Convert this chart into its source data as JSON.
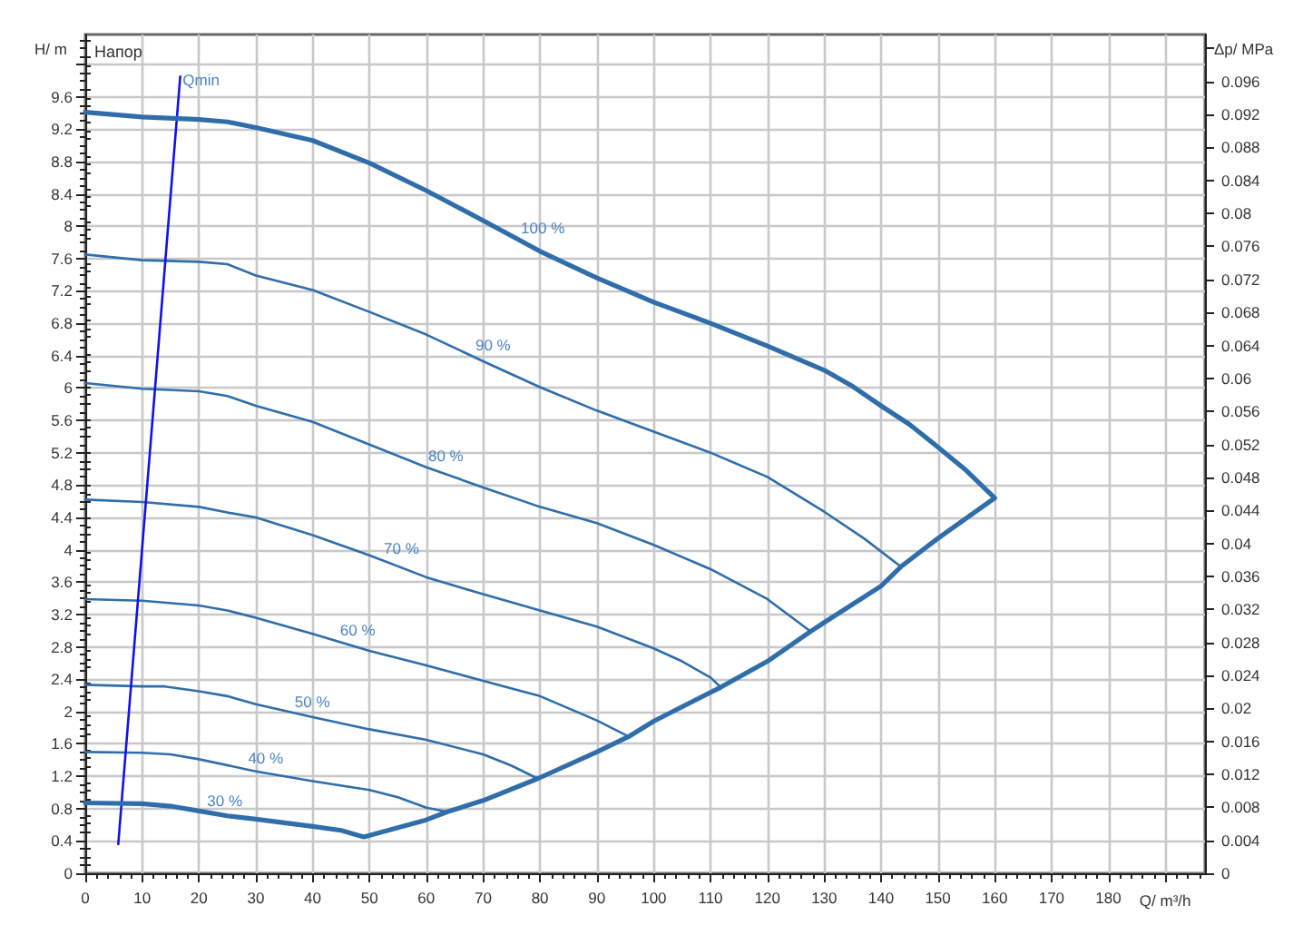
{
  "chart_data": {
    "type": "line",
    "title": "Напор",
    "xlabel": "Q/ m³/h",
    "ylabel": "H/ m",
    "y2label": "Δp/ MPa",
    "xlim": [
      0,
      197
    ],
    "xticks": [
      0,
      10,
      20,
      30,
      40,
      50,
      60,
      70,
      80,
      90,
      100,
      110,
      120,
      130,
      140,
      150,
      160,
      170,
      180,
      {
        "value": 190,
        "label": null
      }
    ],
    "ylim": [
      0,
      10.37
    ],
    "yticks": [
      0,
      0.4,
      0.8,
      1.2,
      1.6,
      2,
      2.4,
      2.8,
      3.2,
      3.6,
      4,
      4.4,
      4.8,
      5.2,
      5.6,
      6,
      6.4,
      6.8,
      7.2,
      7.6,
      8,
      8.4,
      8.8,
      9.2,
      9.6,
      {
        "value": 10,
        "label": null
      }
    ],
    "y2lim": [
      0,
      0.1017
    ],
    "y2ticks": [
      0,
      0.004,
      0.008,
      0.012,
      0.016,
      0.02,
      0.024,
      0.028,
      0.032,
      0.036,
      0.04,
      0.044,
      0.048,
      0.052,
      0.056,
      0.06,
      0.064,
      0.068,
      0.072,
      0.076,
      0.08,
      0.084,
      0.088,
      0.092,
      0.096,
      {
        "value": 0.1,
        "label": null
      }
    ],
    "grid": true,
    "series": [
      {
        "color": "#2f6eaa",
        "x": [
          0,
          10,
          15,
          20,
          25,
          30,
          40,
          45,
          49,
          60,
          63.7,
          70,
          79.6,
          90,
          95.6,
          100,
          111.8,
          120,
          127.6,
          130,
          140,
          143.5,
          150,
          155,
          160,
          155,
          150,
          145,
          140,
          135,
          130,
          120,
          110,
          100,
          90,
          80,
          70,
          60,
          50,
          40,
          30,
          25,
          20,
          10,
          0
        ],
        "values": [
          0.87,
          0.86,
          0.83,
          0.77,
          0.71,
          0.67,
          0.58,
          0.53,
          0.45,
          0.66,
          0.76,
          0.9,
          1.17,
          1.5,
          1.69,
          1.88,
          2.3,
          2.62,
          2.99,
          3.1,
          3.55,
          3.79,
          4.14,
          4.39,
          4.64,
          4.98,
          5.27,
          5.55,
          5.78,
          6.02,
          6.22,
          6.52,
          6.8,
          7.06,
          7.36,
          7.69,
          8.07,
          8.44,
          8.78,
          9.06,
          9.22,
          9.29,
          9.32,
          9.35,
          9.41
        ]
      },
      {
        "color": "#2f6eaa",
        "x": [
          0,
          10,
          20,
          25,
          30,
          40,
          50,
          60,
          70,
          80,
          90,
          100,
          110,
          120,
          130,
          137,
          143.5
        ],
        "values": [
          7.65,
          7.58,
          7.56,
          7.53,
          7.39,
          7.21,
          6.94,
          6.66,
          6.33,
          6.01,
          5.72,
          5.46,
          5.2,
          4.9,
          4.47,
          4.14,
          3.79
        ]
      },
      {
        "color": "#2f6eaa",
        "x": [
          0,
          10,
          20,
          25,
          30,
          40,
          50,
          60,
          70,
          80,
          90,
          100,
          110,
          120,
          127.6
        ],
        "values": [
          6.06,
          5.99,
          5.96,
          5.9,
          5.78,
          5.58,
          5.3,
          5.02,
          4.77,
          4.53,
          4.33,
          4.06,
          3.76,
          3.39,
          2.99
        ]
      },
      {
        "color": "#2f6eaa",
        "x": [
          0,
          10,
          20,
          25,
          30,
          40,
          50,
          60,
          70,
          80,
          90,
          100,
          105,
          110,
          111.8
        ],
        "values": [
          4.62,
          4.59,
          4.53,
          4.46,
          4.4,
          4.18,
          3.93,
          3.66,
          3.45,
          3.25,
          3.05,
          2.78,
          2.62,
          2.42,
          2.3
        ]
      },
      {
        "color": "#2f6eaa",
        "x": [
          0,
          10,
          20,
          25,
          30,
          40,
          50,
          60,
          70,
          80,
          90,
          95.6
        ],
        "values": [
          3.39,
          3.37,
          3.31,
          3.25,
          3.16,
          2.96,
          2.75,
          2.57,
          2.38,
          2.19,
          1.89,
          1.69
        ]
      },
      {
        "color": "#2f6eaa",
        "x": [
          0,
          10,
          14,
          20,
          25,
          30,
          40,
          50,
          60,
          70,
          75,
          79.6
        ],
        "values": [
          2.33,
          2.31,
          2.31,
          2.25,
          2.19,
          2.09,
          1.93,
          1.78,
          1.65,
          1.47,
          1.33,
          1.17
        ]
      },
      {
        "color": "#2f6eaa",
        "x": [
          0,
          10,
          15,
          20,
          30,
          40,
          50,
          55,
          60,
          63.7
        ],
        "values": [
          1.5,
          1.49,
          1.47,
          1.41,
          1.26,
          1.14,
          1.03,
          0.94,
          0.81,
          0.76
        ]
      },
      {
        "color": "#1010ee",
        "x": [
          5.8,
          16.7
        ],
        "values": [
          0.36,
          9.85
        ]
      }
    ],
    "annotations": [
      {
        "text": "100 %",
        "x": 76,
        "y": 7.84
      },
      {
        "text": "90 %",
        "x": 68,
        "y": 6.4
      },
      {
        "text": "80 %",
        "x": 59.7,
        "y": 5.03
      },
      {
        "text": "70 %",
        "x": 51.9,
        "y": 3.88
      },
      {
        "text": "60 %",
        "x": 44.2,
        "y": 2.87
      },
      {
        "text": "50 %",
        "x": 36.2,
        "y": 1.99
      },
      {
        "text": "40 %",
        "x": 28,
        "y": 1.29
      },
      {
        "text": "30 %",
        "x": 20.8,
        "y": 0.76
      },
      {
        "text": "Qmin",
        "x": 16.5,
        "y": 9.67
      }
    ]
  }
}
